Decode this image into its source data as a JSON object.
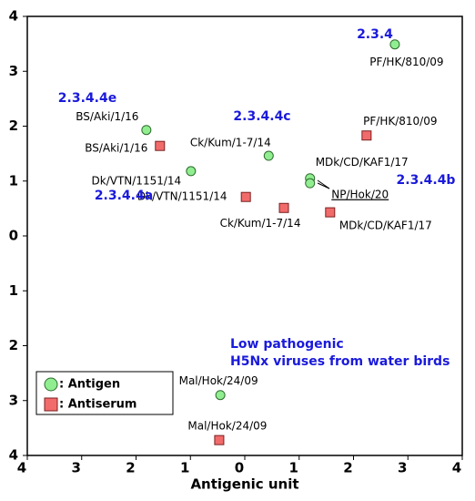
{
  "chart_data": {
    "type": "scatter",
    "xlabel": "Antigenic unit",
    "xlim": [
      -4,
      4
    ],
    "ylim": [
      -4,
      4
    ],
    "xticks": [
      {
        "value": -4,
        "label": "4"
      },
      {
        "value": -3,
        "label": "3"
      },
      {
        "value": -2,
        "label": "2"
      },
      {
        "value": -1,
        "label": "1"
      },
      0,
      1,
      2,
      3,
      4
    ],
    "yticks": [
      {
        "value": -4,
        "label": "4"
      },
      {
        "value": -3,
        "label": "3"
      },
      {
        "value": -2,
        "label": "2"
      },
      {
        "value": -1,
        "label": "1"
      },
      0,
      1,
      2,
      3,
      4
    ],
    "series": [
      {
        "name": ": Antigen",
        "color": "#90ee90",
        "marker": "circle",
        "labels": [
          "PF/HK/810/09",
          "BS/Aki/1/16",
          "Ck/Kum/1-7/14",
          "Dk/VTN/1151/14",
          "MDk/CD/KAF1/17",
          "NP/Hok/20",
          "Mal/Hok/24/09"
        ],
        "x": [
          2.76,
          -1.81,
          0.44,
          -0.99,
          1.2,
          1.2,
          -0.45
        ],
        "values": [
          3.49,
          1.93,
          1.46,
          1.18,
          1.05,
          0.96,
          -2.9
        ]
      },
      {
        "name": ": Antiserum",
        "color": "#f26b6b",
        "marker": "square",
        "labels": [
          "PF/HK/810/09",
          "BS/Aki/1/16",
          "Dk/VTN/1151/14",
          "Ck/Kum/1-7/14",
          "MDk/CD/KAF1/17",
          "Mal/Hok/24/09"
        ],
        "x": [
          2.24,
          -1.56,
          0.02,
          0.72,
          1.57,
          -0.47
        ],
        "values": [
          1.83,
          1.64,
          0.71,
          0.51,
          0.43,
          -3.72
        ]
      }
    ],
    "annotations": [
      "2.3.4",
      "2.3.4.4e",
      "2.3.4.4c",
      "2.3.4.4a",
      "2.3.4.4b",
      "Low pathogenic",
      "H5Nx viruses from water birds"
    ]
  }
}
